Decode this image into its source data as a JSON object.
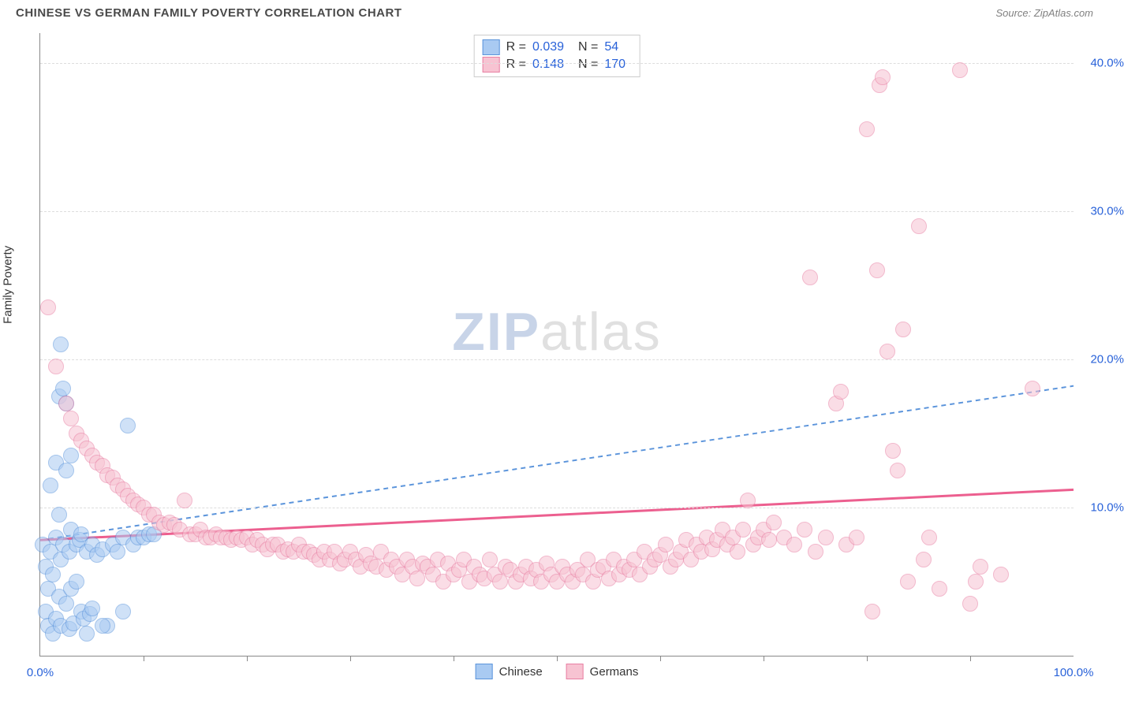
{
  "header": {
    "title": "CHINESE VS GERMAN FAMILY POVERTY CORRELATION CHART",
    "source": "Source: ZipAtlas.com"
  },
  "watermark": {
    "zip": "ZIP",
    "atlas": "atlas"
  },
  "chart": {
    "type": "scatter",
    "ylabel": "Family Poverty",
    "background_color": "#ffffff",
    "grid_color": "#dddddd",
    "axis_color": "#888888",
    "tick_label_color": "#2962d9",
    "xlim": [
      0,
      100
    ],
    "ylim": [
      0,
      42
    ],
    "yticks": [
      {
        "v": 10,
        "label": "10.0%"
      },
      {
        "v": 20,
        "label": "20.0%"
      },
      {
        "v": 30,
        "label": "30.0%"
      },
      {
        "v": 40,
        "label": "40.0%"
      }
    ],
    "xticks_major": [
      0,
      100
    ],
    "xticks_minor": [
      10,
      20,
      30,
      40,
      50,
      60,
      70,
      80,
      90
    ],
    "xtick_labels": [
      {
        "v": 0,
        "label": "0.0%"
      },
      {
        "v": 100,
        "label": "100.0%"
      }
    ],
    "marker_radius": 10,
    "marker_border_width": 1.5,
    "series": [
      {
        "name": "Chinese",
        "fill": "#a9caf2",
        "stroke": "#5b94db",
        "fill_opacity": 0.55,
        "trend": {
          "dash": "6,5",
          "width": 2,
          "color": "#5b94db",
          "y_at_x0": 7.8,
          "y_at_x100": 18.2
        },
        "stats": {
          "R": "0.039",
          "N": "54"
        },
        "points": [
          [
            0.2,
            7.5
          ],
          [
            0.5,
            6.0
          ],
          [
            0.5,
            3.0
          ],
          [
            0.8,
            2.0
          ],
          [
            0.8,
            4.5
          ],
          [
            1.0,
            11.5
          ],
          [
            1.0,
            7.0
          ],
          [
            1.2,
            1.5
          ],
          [
            1.2,
            5.5
          ],
          [
            1.5,
            13.0
          ],
          [
            1.5,
            8.0
          ],
          [
            1.5,
            2.5
          ],
          [
            1.8,
            17.5
          ],
          [
            1.8,
            9.5
          ],
          [
            1.8,
            4.0
          ],
          [
            2.0,
            21.0
          ],
          [
            2.0,
            6.5
          ],
          [
            2.0,
            2.0
          ],
          [
            2.2,
            18.0
          ],
          [
            2.2,
            7.5
          ],
          [
            2.5,
            17.0
          ],
          [
            2.5,
            12.5
          ],
          [
            2.5,
            3.5
          ],
          [
            2.8,
            7.0
          ],
          [
            2.8,
            1.8
          ],
          [
            3.0,
            13.5
          ],
          [
            3.0,
            8.5
          ],
          [
            3.0,
            4.5
          ],
          [
            3.2,
            2.2
          ],
          [
            3.5,
            7.5
          ],
          [
            3.5,
            5.0
          ],
          [
            3.8,
            7.8
          ],
          [
            4.0,
            8.2
          ],
          [
            4.0,
            3.0
          ],
          [
            4.2,
            2.5
          ],
          [
            4.5,
            7.0
          ],
          [
            4.8,
            2.8
          ],
          [
            5.0,
            7.5
          ],
          [
            5.0,
            3.2
          ],
          [
            5.5,
            6.8
          ],
          [
            6.0,
            7.2
          ],
          [
            6.5,
            2.0
          ],
          [
            7.0,
            7.5
          ],
          [
            7.5,
            7.0
          ],
          [
            8.0,
            8.0
          ],
          [
            8.5,
            15.5
          ],
          [
            9.0,
            7.5
          ],
          [
            9.5,
            8.0
          ],
          [
            10.0,
            8.0
          ],
          [
            10.5,
            8.2
          ],
          [
            11.0,
            8.2
          ],
          [
            8.0,
            3.0
          ],
          [
            6.0,
            2.0
          ],
          [
            4.5,
            1.5
          ]
        ]
      },
      {
        "name": "Germans",
        "fill": "#f7c3d2",
        "stroke": "#e87fa3",
        "fill_opacity": 0.55,
        "trend": {
          "dash": "none",
          "width": 3,
          "color": "#ec5f8f",
          "y_at_x0": 7.8,
          "y_at_x100": 11.2
        },
        "stats": {
          "R": "0.148",
          "N": "170"
        },
        "points": [
          [
            0.8,
            23.5
          ],
          [
            1.5,
            19.5
          ],
          [
            2.5,
            17.0
          ],
          [
            3.0,
            16.0
          ],
          [
            3.5,
            15.0
          ],
          [
            4.0,
            14.5
          ],
          [
            4.5,
            14.0
          ],
          [
            5.0,
            13.5
          ],
          [
            5.5,
            13.0
          ],
          [
            6.0,
            12.8
          ],
          [
            6.5,
            12.2
          ],
          [
            7.0,
            12.0
          ],
          [
            7.5,
            11.5
          ],
          [
            8.0,
            11.2
          ],
          [
            8.5,
            10.8
          ],
          [
            9.0,
            10.5
          ],
          [
            9.5,
            10.2
          ],
          [
            10.0,
            10.0
          ],
          [
            10.5,
            9.5
          ],
          [
            11.0,
            9.5
          ],
          [
            11.5,
            9.0
          ],
          [
            12.0,
            8.8
          ],
          [
            12.5,
            9.0
          ],
          [
            13.0,
            8.8
          ],
          [
            13.5,
            8.5
          ],
          [
            14.0,
            10.5
          ],
          [
            14.5,
            8.2
          ],
          [
            15.0,
            8.2
          ],
          [
            15.5,
            8.5
          ],
          [
            16.0,
            8.0
          ],
          [
            16.5,
            8.0
          ],
          [
            17.0,
            8.2
          ],
          [
            17.5,
            8.0
          ],
          [
            18.0,
            8.0
          ],
          [
            18.5,
            7.8
          ],
          [
            19.0,
            8.0
          ],
          [
            19.5,
            7.8
          ],
          [
            20.0,
            8.0
          ],
          [
            20.5,
            7.5
          ],
          [
            21.0,
            7.8
          ],
          [
            21.5,
            7.5
          ],
          [
            22.0,
            7.2
          ],
          [
            22.5,
            7.5
          ],
          [
            23.0,
            7.5
          ],
          [
            23.5,
            7.0
          ],
          [
            24.0,
            7.2
          ],
          [
            24.5,
            7.0
          ],
          [
            25.0,
            7.5
          ],
          [
            25.5,
            7.0
          ],
          [
            26.0,
            7.0
          ],
          [
            26.5,
            6.8
          ],
          [
            27.0,
            6.5
          ],
          [
            27.5,
            7.0
          ],
          [
            28.0,
            6.5
          ],
          [
            28.5,
            7.0
          ],
          [
            29.0,
            6.2
          ],
          [
            29.5,
            6.5
          ],
          [
            30.0,
            7.0
          ],
          [
            30.5,
            6.5
          ],
          [
            31.0,
            6.0
          ],
          [
            31.5,
            6.8
          ],
          [
            32.0,
            6.2
          ],
          [
            32.5,
            6.0
          ],
          [
            33.0,
            7.0
          ],
          [
            33.5,
            5.8
          ],
          [
            34.0,
            6.5
          ],
          [
            34.5,
            6.0
          ],
          [
            35.0,
            5.5
          ],
          [
            35.5,
            6.5
          ],
          [
            36.0,
            6.0
          ],
          [
            36.5,
            5.2
          ],
          [
            37.0,
            6.2
          ],
          [
            37.5,
            6.0
          ],
          [
            38.0,
            5.5
          ],
          [
            38.5,
            6.5
          ],
          [
            39.0,
            5.0
          ],
          [
            39.5,
            6.2
          ],
          [
            40.0,
            5.5
          ],
          [
            40.5,
            5.8
          ],
          [
            41.0,
            6.5
          ],
          [
            41.5,
            5.0
          ],
          [
            42.0,
            6.0
          ],
          [
            42.5,
            5.5
          ],
          [
            43.0,
            5.2
          ],
          [
            43.5,
            6.5
          ],
          [
            44.0,
            5.5
          ],
          [
            44.5,
            5.0
          ],
          [
            45.0,
            6.0
          ],
          [
            45.5,
            5.8
          ],
          [
            46.0,
            5.0
          ],
          [
            46.5,
            5.5
          ],
          [
            47.0,
            6.0
          ],
          [
            47.5,
            5.2
          ],
          [
            48.0,
            5.8
          ],
          [
            48.5,
            5.0
          ],
          [
            49.0,
            6.2
          ],
          [
            49.5,
            5.5
          ],
          [
            50.0,
            5.0
          ],
          [
            50.5,
            6.0
          ],
          [
            51.0,
            5.5
          ],
          [
            51.5,
            5.0
          ],
          [
            52.0,
            5.8
          ],
          [
            52.5,
            5.5
          ],
          [
            53.0,
            6.5
          ],
          [
            53.5,
            5.0
          ],
          [
            54.0,
            5.8
          ],
          [
            54.5,
            6.0
          ],
          [
            55.0,
            5.2
          ],
          [
            55.5,
            6.5
          ],
          [
            56.0,
            5.5
          ],
          [
            56.5,
            6.0
          ],
          [
            57.0,
            5.8
          ],
          [
            57.5,
            6.5
          ],
          [
            58.0,
            5.5
          ],
          [
            58.5,
            7.0
          ],
          [
            59.0,
            6.0
          ],
          [
            59.5,
            6.5
          ],
          [
            60.0,
            6.8
          ],
          [
            60.5,
            7.5
          ],
          [
            61.0,
            6.0
          ],
          [
            61.5,
            6.5
          ],
          [
            62.0,
            7.0
          ],
          [
            62.5,
            7.8
          ],
          [
            63.0,
            6.5
          ],
          [
            63.5,
            7.5
          ],
          [
            64.0,
            7.0
          ],
          [
            64.5,
            8.0
          ],
          [
            65.0,
            7.2
          ],
          [
            65.5,
            7.8
          ],
          [
            66.0,
            8.5
          ],
          [
            66.5,
            7.5
          ],
          [
            67.0,
            8.0
          ],
          [
            67.5,
            7.0
          ],
          [
            68.0,
            8.5
          ],
          [
            68.5,
            10.5
          ],
          [
            69.0,
            7.5
          ],
          [
            69.5,
            8.0
          ],
          [
            70.0,
            8.5
          ],
          [
            70.5,
            7.8
          ],
          [
            71.0,
            9.0
          ],
          [
            72.0,
            8.0
          ],
          [
            73.0,
            7.5
          ],
          [
            74.0,
            8.5
          ],
          [
            74.5,
            25.5
          ],
          [
            75.0,
            7.0
          ],
          [
            76.0,
            8.0
          ],
          [
            77.0,
            17.0
          ],
          [
            77.5,
            17.8
          ],
          [
            78.0,
            7.5
          ],
          [
            79.0,
            8.0
          ],
          [
            80.0,
            35.5
          ],
          [
            80.5,
            3.0
          ],
          [
            81.0,
            26.0
          ],
          [
            81.2,
            38.5
          ],
          [
            81.5,
            39.0
          ],
          [
            82.0,
            20.5
          ],
          [
            82.5,
            13.8
          ],
          [
            83.0,
            12.5
          ],
          [
            83.5,
            22.0
          ],
          [
            84.0,
            5.0
          ],
          [
            85.0,
            29.0
          ],
          [
            85.5,
            6.5
          ],
          [
            87.0,
            4.5
          ],
          [
            89.0,
            39.5
          ],
          [
            90.0,
            3.5
          ],
          [
            91.0,
            6.0
          ],
          [
            93.0,
            5.5
          ],
          [
            96.0,
            18.0
          ],
          [
            90.5,
            5.0
          ],
          [
            86.0,
            8.0
          ]
        ]
      }
    ]
  },
  "stats_box": {
    "rows": [
      {
        "swatch_fill": "#a9caf2",
        "swatch_stroke": "#5b94db",
        "R_label": "R =",
        "R": "0.039",
        "N_label": "N =",
        "N": "54"
      },
      {
        "swatch_fill": "#f7c3d2",
        "swatch_stroke": "#e87fa3",
        "R_label": "R =",
        "R": "0.148",
        "N_label": "N =",
        "N": "170"
      }
    ]
  },
  "legend": {
    "items": [
      {
        "label": "Chinese",
        "fill": "#a9caf2",
        "stroke": "#5b94db"
      },
      {
        "label": "Germans",
        "fill": "#f7c3d2",
        "stroke": "#e87fa3"
      }
    ]
  }
}
